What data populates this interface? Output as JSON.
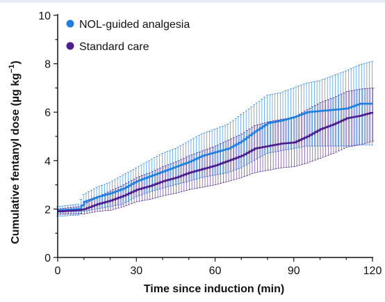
{
  "chart_data": {
    "type": "line",
    "title": "",
    "xlabel": "Time since induction (min)",
    "ylabel": "Cumulative fentanyl dose (µg kg",
    "ylabel_unit_sup": "−1",
    "ylabel_close": ")",
    "xlim": [
      0,
      120
    ],
    "ylim": [
      0,
      10
    ],
    "x_ticks": [
      0,
      30,
      60,
      90,
      120
    ],
    "y_ticks": [
      0,
      2,
      4,
      6,
      8,
      10
    ],
    "legend_position": "top-left",
    "grid": false,
    "error_bars": true,
    "series": [
      {
        "name": "NOL-guided analgesia",
        "color": "#1f7fe0",
        "points": [
          {
            "x": 0,
            "y": 1.95,
            "lo": 1.7,
            "hi": 2.1
          },
          {
            "x": 8,
            "y": 2.0,
            "lo": 1.75,
            "hi": 2.2
          },
          {
            "x": 10,
            "y": 2.3,
            "lo": 1.9,
            "hi": 2.6
          },
          {
            "x": 15,
            "y": 2.5,
            "lo": 2.0,
            "hi": 2.9
          },
          {
            "x": 20,
            "y": 2.65,
            "lo": 2.1,
            "hi": 3.1
          },
          {
            "x": 25,
            "y": 2.85,
            "lo": 2.2,
            "hi": 3.4
          },
          {
            "x": 30,
            "y": 3.15,
            "lo": 2.5,
            "hi": 3.7
          },
          {
            "x": 35,
            "y": 3.35,
            "lo": 2.7,
            "hi": 4.0
          },
          {
            "x": 40,
            "y": 3.55,
            "lo": 2.85,
            "hi": 4.3
          },
          {
            "x": 45,
            "y": 3.75,
            "lo": 3.0,
            "hi": 4.5
          },
          {
            "x": 50,
            "y": 3.95,
            "lo": 3.15,
            "hi": 4.8
          },
          {
            "x": 55,
            "y": 4.2,
            "lo": 3.3,
            "hi": 5.1
          },
          {
            "x": 60,
            "y": 4.35,
            "lo": 3.4,
            "hi": 5.3
          },
          {
            "x": 65,
            "y": 4.5,
            "lo": 3.5,
            "hi": 5.5
          },
          {
            "x": 70,
            "y": 4.8,
            "lo": 3.7,
            "hi": 5.9
          },
          {
            "x": 75,
            "y": 5.2,
            "lo": 4.0,
            "hi": 6.3
          },
          {
            "x": 80,
            "y": 5.55,
            "lo": 4.3,
            "hi": 6.7
          },
          {
            "x": 85,
            "y": 5.65,
            "lo": 4.4,
            "hi": 6.8
          },
          {
            "x": 90,
            "y": 5.8,
            "lo": 4.5,
            "hi": 7.0
          },
          {
            "x": 95,
            "y": 6.0,
            "lo": 4.6,
            "hi": 7.2
          },
          {
            "x": 100,
            "y": 6.05,
            "lo": 4.6,
            "hi": 7.3
          },
          {
            "x": 105,
            "y": 6.1,
            "lo": 4.6,
            "hi": 7.5
          },
          {
            "x": 110,
            "y": 6.15,
            "lo": 4.6,
            "hi": 7.7
          },
          {
            "x": 115,
            "y": 6.35,
            "lo": 4.65,
            "hi": 7.95
          },
          {
            "x": 120,
            "y": 6.35,
            "lo": 4.65,
            "hi": 8.1
          }
        ]
      },
      {
        "name": "Standard care",
        "color": "#4b1d8e",
        "points": [
          {
            "x": 0,
            "y": 1.9,
            "lo": 1.8,
            "hi": 2.0
          },
          {
            "x": 8,
            "y": 1.95,
            "lo": 1.8,
            "hi": 2.1
          },
          {
            "x": 10,
            "y": 2.0,
            "lo": 1.8,
            "hi": 2.2
          },
          {
            "x": 15,
            "y": 2.2,
            "lo": 1.9,
            "hi": 2.5
          },
          {
            "x": 20,
            "y": 2.35,
            "lo": 1.95,
            "hi": 2.75
          },
          {
            "x": 25,
            "y": 2.55,
            "lo": 2.1,
            "hi": 3.0
          },
          {
            "x": 30,
            "y": 2.8,
            "lo": 2.3,
            "hi": 3.3
          },
          {
            "x": 35,
            "y": 2.95,
            "lo": 2.4,
            "hi": 3.5
          },
          {
            "x": 40,
            "y": 3.15,
            "lo": 2.55,
            "hi": 3.75
          },
          {
            "x": 45,
            "y": 3.3,
            "lo": 2.65,
            "hi": 3.95
          },
          {
            "x": 50,
            "y": 3.5,
            "lo": 2.8,
            "hi": 4.2
          },
          {
            "x": 55,
            "y": 3.65,
            "lo": 2.9,
            "hi": 4.4
          },
          {
            "x": 60,
            "y": 3.8,
            "lo": 3.0,
            "hi": 4.6
          },
          {
            "x": 65,
            "y": 4.0,
            "lo": 3.15,
            "hi": 4.85
          },
          {
            "x": 70,
            "y": 4.2,
            "lo": 3.3,
            "hi": 5.1
          },
          {
            "x": 75,
            "y": 4.5,
            "lo": 3.5,
            "hi": 5.45
          },
          {
            "x": 80,
            "y": 4.6,
            "lo": 3.6,
            "hi": 5.6
          },
          {
            "x": 85,
            "y": 4.7,
            "lo": 3.7,
            "hi": 5.7
          },
          {
            "x": 90,
            "y": 4.75,
            "lo": 3.75,
            "hi": 5.8
          },
          {
            "x": 95,
            "y": 5.0,
            "lo": 3.9,
            "hi": 6.1
          },
          {
            "x": 100,
            "y": 5.3,
            "lo": 4.1,
            "hi": 6.4
          },
          {
            "x": 105,
            "y": 5.5,
            "lo": 4.3,
            "hi": 6.6
          },
          {
            "x": 110,
            "y": 5.75,
            "lo": 4.55,
            "hi": 6.85
          },
          {
            "x": 115,
            "y": 5.85,
            "lo": 4.65,
            "hi": 6.95
          },
          {
            "x": 120,
            "y": 6.0,
            "lo": 4.8,
            "hi": 7.0
          }
        ]
      }
    ]
  }
}
